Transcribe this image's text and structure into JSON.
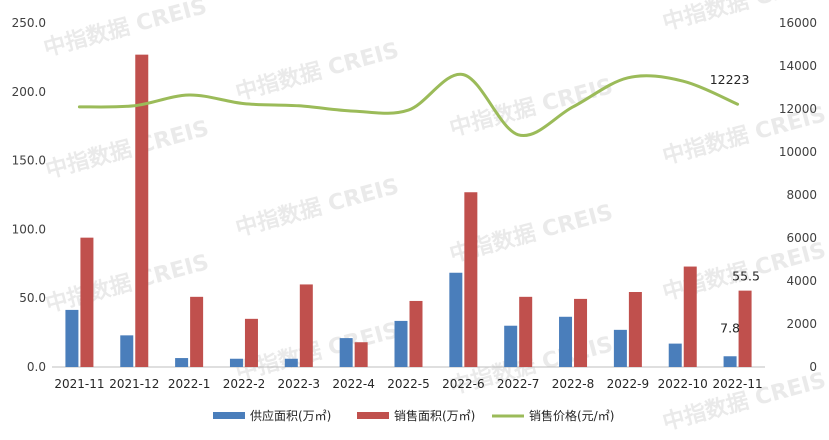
{
  "colors": {
    "supply": "#4a7ebb",
    "sales_area": "#c0504d",
    "price": "#9bbb59",
    "axis": "#bfbfbf",
    "text": "#404040",
    "watermark": "#d9d9d9"
  },
  "watermark_text": "中指数据 CREIS",
  "chart_data": {
    "type": "bar",
    "categories": [
      "2021-11",
      "2021-12",
      "2022-1",
      "2022-2",
      "2022-3",
      "2022-4",
      "2022-5",
      "2022-6",
      "2022-7",
      "2022-8",
      "2022-9",
      "2022-10",
      "2022-11"
    ],
    "series": [
      {
        "name": "供应面积(万㎡)",
        "type": "bar",
        "axis": "left",
        "values": [
          41.5,
          23,
          6.5,
          6,
          6,
          21,
          33.5,
          68.5,
          30,
          36.5,
          27,
          17,
          7.8
        ]
      },
      {
        "name": "销售面积(万㎡)",
        "type": "bar",
        "axis": "left",
        "values": [
          94,
          227,
          51,
          35,
          60,
          18,
          48,
          127,
          51,
          49.5,
          54.5,
          73,
          55.5
        ]
      },
      {
        "name": "销售价格(元/㎡)",
        "type": "line",
        "axis": "right",
        "values": [
          12100,
          12150,
          12650,
          12250,
          12150,
          11900,
          11950,
          13600,
          10800,
          12100,
          13450,
          13300,
          12223
        ]
      }
    ],
    "data_labels": [
      {
        "series": 0,
        "index": 12,
        "text": "7.8"
      },
      {
        "series": 1,
        "index": 12,
        "text": "55.5"
      },
      {
        "series": 2,
        "index": 12,
        "text": "12223"
      }
    ],
    "y_left": {
      "ylim": [
        0,
        250
      ],
      "ticks": [
        "0.0",
        "50.0",
        "100.0",
        "150.0",
        "200.0",
        "250.0"
      ]
    },
    "y_right": {
      "ylim": [
        0,
        16000
      ],
      "ticks": [
        "0",
        "2000",
        "4000",
        "6000",
        "8000",
        "10000",
        "12000",
        "14000",
        "16000"
      ]
    },
    "grid": false,
    "legend_position": "bottom-center",
    "title": "",
    "xlabel": "",
    "ylabel": ""
  }
}
